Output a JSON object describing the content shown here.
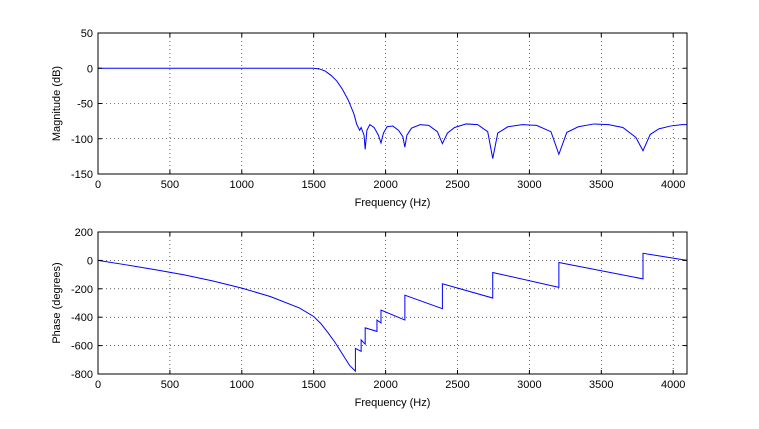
{
  "chart_data": [
    {
      "type": "line",
      "xlabel": "Frequency (Hz)",
      "ylabel": "Magnitude (dB)",
      "xlim": [
        0,
        4096
      ],
      "ylim": [
        -150,
        50
      ],
      "xticks": [
        0,
        500,
        1000,
        1500,
        2000,
        2500,
        3000,
        3500,
        4000
      ],
      "yticks": [
        -150,
        -100,
        -50,
        0,
        50
      ],
      "grid": true,
      "line_color": "#0000ff",
      "series": [
        {
          "x": [
            0,
            1500,
            1540,
            1580,
            1620,
            1660,
            1700,
            1740,
            1780,
            1800,
            1820,
            1830,
            1850,
            1858,
            1870,
            1890,
            1920,
            1950,
            1968,
            1985,
            2010,
            2050,
            2090,
            2120,
            2134,
            2148,
            2180,
            2240,
            2300,
            2360,
            2395,
            2430,
            2480,
            2560,
            2640,
            2710,
            2745,
            2780,
            2850,
            2950,
            3050,
            3150,
            3205,
            3260,
            3340,
            3450,
            3550,
            3650,
            3740,
            3790,
            3840,
            3900,
            3980,
            4060,
            4096
          ],
          "y": [
            0,
            0,
            -1,
            -4,
            -10,
            -18,
            -30,
            -45,
            -65,
            -80,
            -88,
            -84,
            -95,
            -115,
            -88,
            -80,
            -84,
            -95,
            -106,
            -92,
            -83,
            -82,
            -88,
            -97,
            -112,
            -95,
            -85,
            -80,
            -81,
            -90,
            -107,
            -92,
            -84,
            -79,
            -80,
            -90,
            -128,
            -92,
            -83,
            -80,
            -81,
            -90,
            -122,
            -91,
            -83,
            -79,
            -80,
            -84,
            -98,
            -117,
            -94,
            -86,
            -82,
            -80,
            -80
          ]
        }
      ]
    },
    {
      "type": "line",
      "xlabel": "Frequency (Hz)",
      "ylabel": "Phase (degrees)",
      "xlim": [
        0,
        4096
      ],
      "ylim": [
        -800,
        200
      ],
      "xticks": [
        0,
        500,
        1000,
        1500,
        2000,
        2500,
        3000,
        3500,
        4000
      ],
      "yticks": [
        -800,
        -600,
        -400,
        -200,
        0,
        200
      ],
      "grid": true,
      "line_color": "#0000ff",
      "series": [
        {
          "x": [
            0,
            200,
            400,
            600,
            800,
            1000,
            1200,
            1400,
            1500,
            1550,
            1600,
            1650,
            1700,
            1750,
            1790,
            1790,
            1830,
            1830,
            1858,
            1858,
            1940,
            1940,
            1968,
            1968,
            2134,
            2134,
            2395,
            2395,
            2745,
            2745,
            3205,
            3205,
            3790,
            3790,
            4096
          ],
          "y": [
            0,
            -32,
            -66,
            -102,
            -145,
            -195,
            -255,
            -335,
            -395,
            -445,
            -510,
            -580,
            -660,
            -740,
            -780,
            -620,
            -640,
            -560,
            -590,
            -475,
            -500,
            -420,
            -440,
            -350,
            -420,
            -245,
            -340,
            -165,
            -265,
            -85,
            -190,
            -15,
            -130,
            50,
            0
          ]
        }
      ]
    }
  ]
}
